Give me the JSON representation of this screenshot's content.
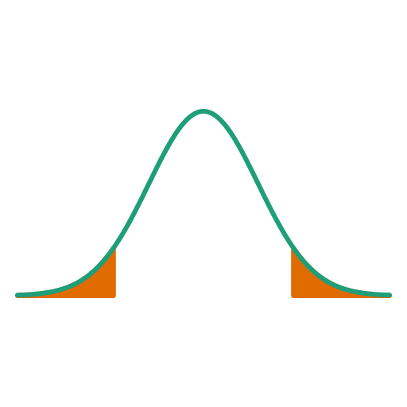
{
  "chart_data": {
    "type": "area",
    "title": "",
    "xlabel": "",
    "ylabel": "",
    "distribution": "normal",
    "mean": 0,
    "sd": 1,
    "xlim": [
      -3.4,
      3.4
    ],
    "ylim": [
      0,
      0.4
    ],
    "grid": false,
    "legend": "none",
    "shaded_regions": [
      {
        "name": "left-tail",
        "from": -3.4,
        "to": -1.645
      },
      {
        "name": "right-tail",
        "from": 1.645,
        "to": 3.4
      }
    ],
    "colors": {
      "curve": "#1f9e7a",
      "tail": "#e06b00",
      "background": "#ffffff"
    }
  }
}
